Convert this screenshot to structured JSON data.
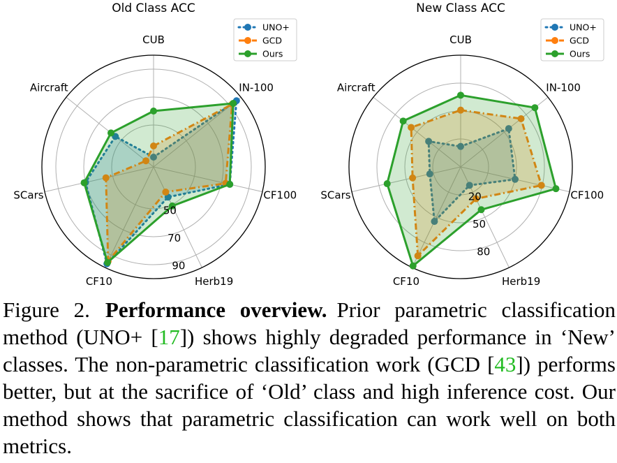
{
  "chart_data": [
    {
      "type": "radar",
      "title": "Old Class ACC",
      "axes": [
        "CUB",
        "IN-100",
        "CF100",
        "Herb19",
        "CF10",
        "SCars",
        "Aircraft"
      ],
      "rlim": [
        20,
        100
      ],
      "rticks": [
        50,
        70,
        90
      ],
      "grid": true,
      "legend": "top-right",
      "series": [
        {
          "name": "UNO+",
          "color": "#1f77b4",
          "linestyle": "dotted",
          "values": [
            27,
            96,
            76,
            44,
            97,
            70,
            55
          ]
        },
        {
          "name": "GCD",
          "color": "#ff7f0e",
          "linestyle": "dashdot",
          "values": [
            35,
            92,
            73,
            40,
            95,
            55,
            27
          ]
        },
        {
          "name": "Ours",
          "color": "#2ca02c",
          "linestyle": "solid",
          "values": [
            60,
            93,
            76,
            51,
            96,
            71,
            59
          ]
        }
      ]
    },
    {
      "type": "radar",
      "title": "New Class ACC",
      "axes": [
        "CUB",
        "IN-100",
        "CF100",
        "Herb19",
        "CF10",
        "SCars",
        "Aircraft"
      ],
      "rlim": [
        -10,
        110
      ],
      "rticks": [
        20,
        50,
        80
      ],
      "grid": true,
      "legend": "top-right",
      "series": [
        {
          "name": "UNO+",
          "color": "#1f77b4",
          "linestyle": "dotted",
          "values": [
            12,
            56,
            50,
            12,
            55,
            24,
            34
          ]
        },
        {
          "name": "GCD",
          "color": "#ff7f0e",
          "linestyle": "dashdot",
          "values": [
            51,
            73,
            79,
            28,
            96,
            43,
            58
          ]
        },
        {
          "name": "Ours",
          "color": "#2ca02c",
          "linestyle": "solid",
          "values": [
            67,
            92,
            95,
            41,
            108,
            71,
            69
          ]
        }
      ]
    }
  ],
  "caption": {
    "label": "Figure 2.",
    "bold": "Performance overview.",
    "text": [
      "Prior parametric classification method (UNO+ [",
      "17",
      "]) shows highly degraded performance in ‘New’ classes. The non-parametric classification work (GCD [",
      "43",
      "]) performs better, but at the sacrifice of ‘Old’ class and high inference cost. Our method shows that parametric classification can work well on both metrics."
    ]
  }
}
